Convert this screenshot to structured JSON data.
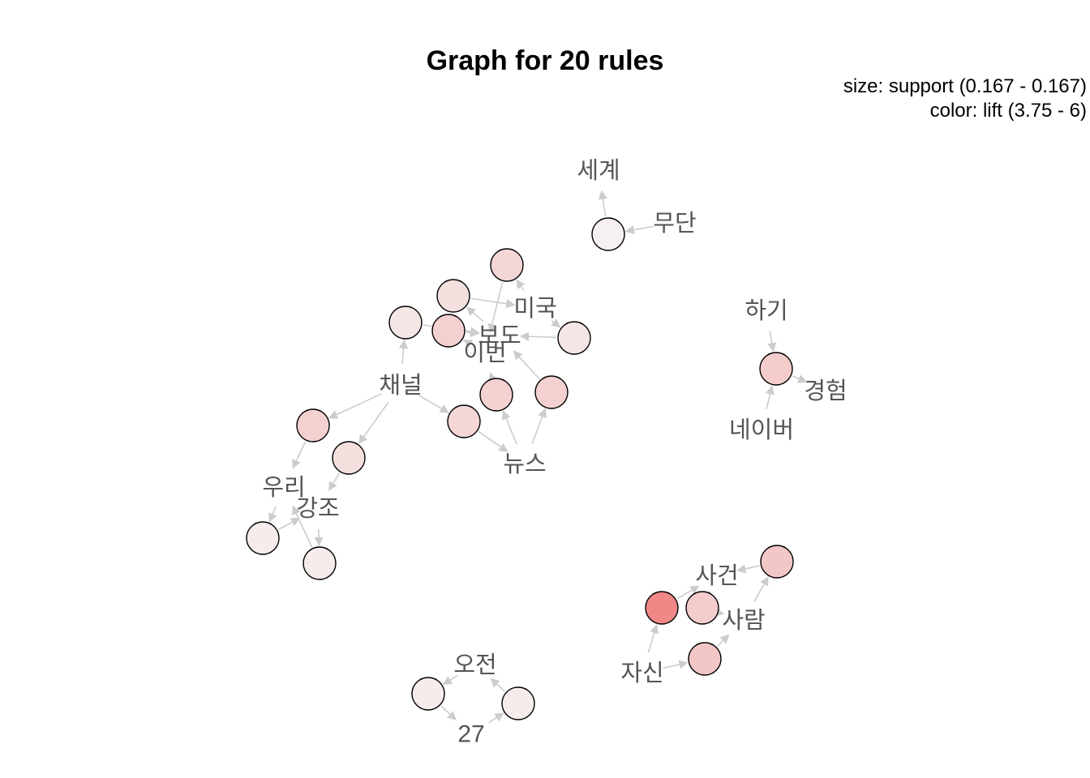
{
  "title": "Graph for 20 rules",
  "legend": {
    "size_line": "size: support (0.167 - 0.167)",
    "color_line": "color: lift (3.75 - 6)"
  },
  "colors": {
    "node_low": "#f6f0f0",
    "node_mid": "#f2dcdc",
    "node_high": "#f08888",
    "edge": "#cccccc",
    "label": "#555555"
  },
  "items": [
    {
      "id": "segye",
      "label": "세계"
    },
    {
      "id": "mudan",
      "label": "무단"
    },
    {
      "id": "miguk",
      "label": "미국"
    },
    {
      "id": "bodo",
      "label": "보도"
    },
    {
      "id": "ibeon",
      "label": "이번"
    },
    {
      "id": "chaeneol",
      "label": "채널"
    },
    {
      "id": "nyuseu",
      "label": "뉴스"
    },
    {
      "id": "uri",
      "label": "우리"
    },
    {
      "id": "gangjo",
      "label": "강조"
    },
    {
      "id": "hagi",
      "label": "하기"
    },
    {
      "id": "gyeongheom",
      "label": "경험"
    },
    {
      "id": "neibeo",
      "label": "네이버"
    },
    {
      "id": "sageon",
      "label": "사건"
    },
    {
      "id": "saram",
      "label": "사람"
    },
    {
      "id": "jasin",
      "label": "자신"
    },
    {
      "id": "ojeon",
      "label": "오전"
    },
    {
      "id": "n27",
      "label": "27"
    }
  ],
  "rules": [
    {
      "id": "r1",
      "lift": 3.75,
      "support": 0.167,
      "from": [
        "mudan"
      ],
      "to": "segye"
    },
    {
      "id": "r2",
      "lift": 4.2,
      "support": 0.167,
      "from": [
        "miguk"
      ],
      "to": "ibeon"
    },
    {
      "id": "r3",
      "lift": 4.0,
      "support": 0.167,
      "from": [
        "bodo"
      ],
      "to": "miguk"
    },
    {
      "id": "r4",
      "lift": 3.9,
      "support": 0.167,
      "from": [
        "chaeneol"
      ],
      "to": "bodo"
    },
    {
      "id": "r5",
      "lift": 4.3,
      "support": 0.167,
      "from": [
        "ibeon"
      ],
      "to": "bodo"
    },
    {
      "id": "r6",
      "lift": 3.9,
      "support": 0.167,
      "from": [
        "miguk"
      ],
      "to": "bodo"
    },
    {
      "id": "r7",
      "lift": 4.3,
      "support": 0.167,
      "from": [
        "nyuseu"
      ],
      "to": "ibeon"
    },
    {
      "id": "r8",
      "lift": 4.3,
      "support": 0.167,
      "from": [
        "nyuseu"
      ],
      "to": "bodo"
    },
    {
      "id": "r9",
      "lift": 4.2,
      "support": 0.167,
      "from": [
        "chaeneol"
      ],
      "to": "nyuseu"
    },
    {
      "id": "r10",
      "lift": 4.3,
      "support": 0.167,
      "from": [
        "chaeneol"
      ],
      "to": "uri"
    },
    {
      "id": "r11",
      "lift": 4.0,
      "support": 0.167,
      "from": [
        "chaeneol"
      ],
      "to": "gangjo"
    },
    {
      "id": "r12",
      "lift": 3.8,
      "support": 0.167,
      "from": [
        "uri"
      ],
      "to": "gangjo"
    },
    {
      "id": "r13",
      "lift": 3.8,
      "support": 0.167,
      "from": [
        "gangjo"
      ],
      "to": "uri"
    },
    {
      "id": "r14",
      "lift": 4.4,
      "support": 0.167,
      "from": [
        "hagi",
        "neibeo"
      ],
      "to": "gyeongheom"
    },
    {
      "id": "r15",
      "lift": 4.5,
      "support": 0.167,
      "from": [
        "saram"
      ],
      "to": "sageon"
    },
    {
      "id": "r16",
      "lift": 6.0,
      "support": 0.167,
      "from": [
        "jasin"
      ],
      "to": "sageon"
    },
    {
      "id": "r17",
      "lift": 4.4,
      "support": 0.167,
      "from": [
        "sageon"
      ],
      "to": "saram"
    },
    {
      "id": "r18",
      "lift": 4.5,
      "support": 0.167,
      "from": [
        "jasin"
      ],
      "to": "saram"
    },
    {
      "id": "r19",
      "lift": 3.8,
      "support": 0.167,
      "from": [
        "ojeon"
      ],
      "to": "n27"
    },
    {
      "id": "r20",
      "lift": 3.8,
      "support": 0.167,
      "from": [
        "n27"
      ],
      "to": "ojeon"
    }
  ]
}
